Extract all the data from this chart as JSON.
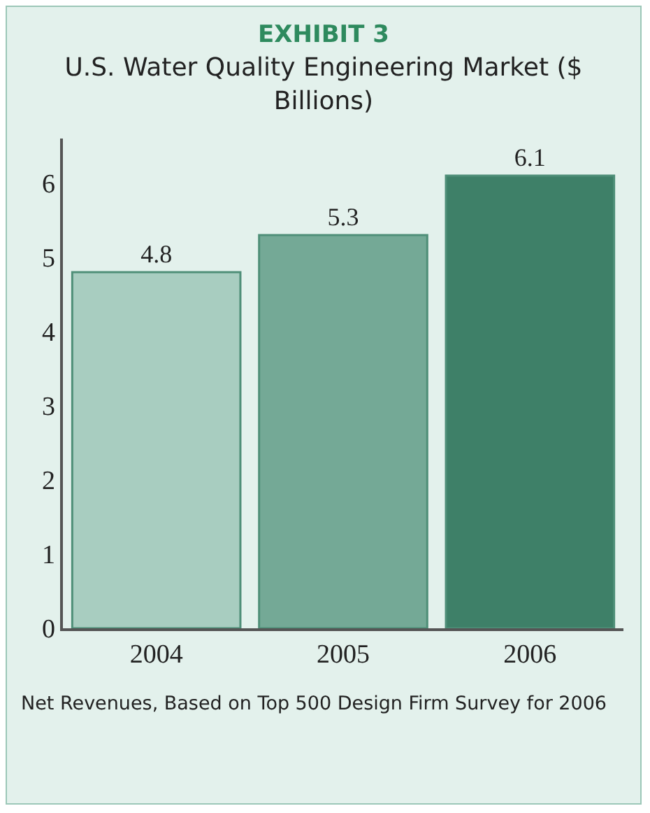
{
  "chart_data": {
    "type": "bar",
    "title": "EXHIBIT 3",
    "subtitle": "U.S. Water Quality Engineering Market ($ Billions)",
    "categories": [
      "2004",
      "2005",
      "2006"
    ],
    "values": [
      4.8,
      5.3,
      6.1
    ],
    "colors": [
      "#a8cdc0",
      "#74a996",
      "#3e8068"
    ],
    "ylim": [
      0,
      6.6
    ],
    "yticks": [
      0,
      1,
      2,
      3,
      4,
      5,
      6
    ],
    "grid": false,
    "data_labels": true,
    "annotations": [
      "Net Revenues, Based on Top 500 Design Firm Survey for 2006"
    ]
  }
}
